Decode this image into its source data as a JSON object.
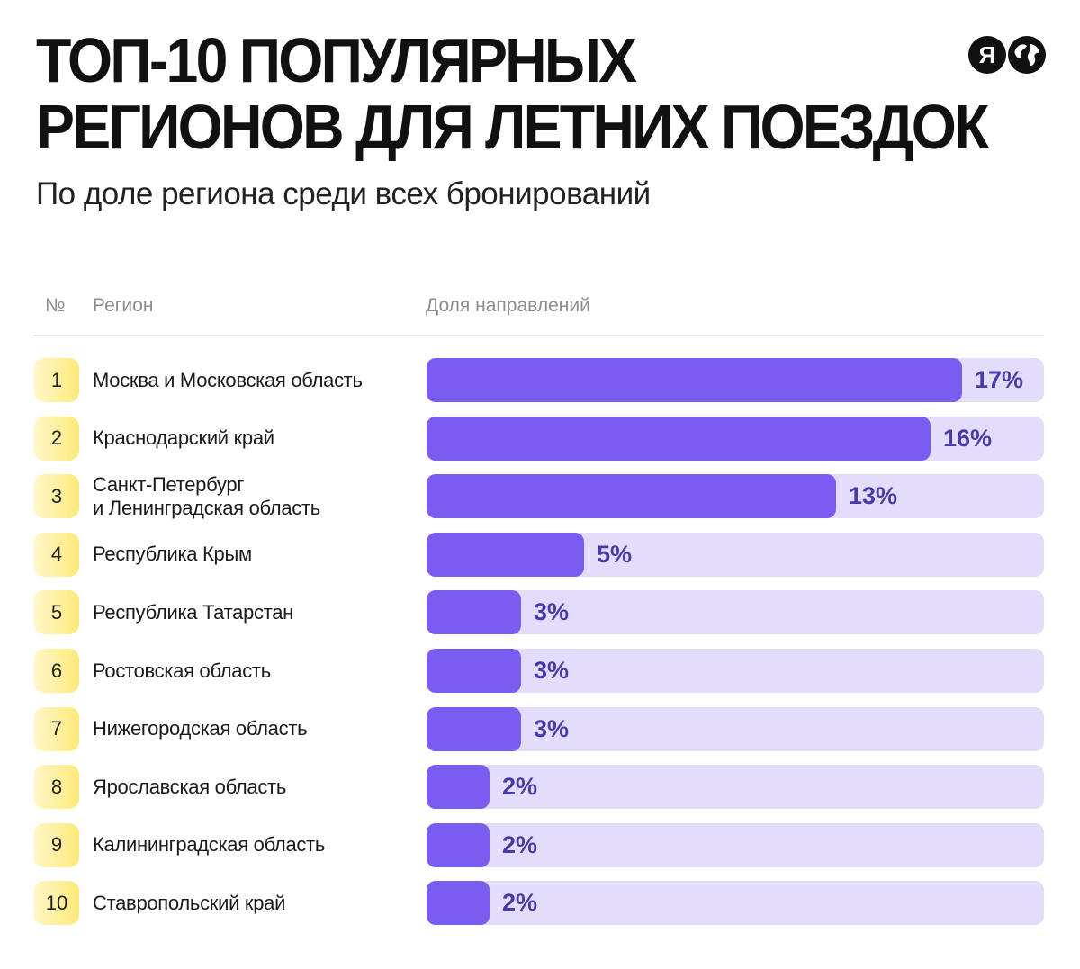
{
  "header": {
    "title_line1": "ТОП-10 ПОПУЛЯРНЫХ",
    "title_line2": "РЕГИОНОВ ДЛЯ ЛЕТНИХ ПОЕЗДОК",
    "subtitle": "По доле региона среди всех бронирований",
    "logo_letter": "Я"
  },
  "table_header": {
    "no": "№",
    "region": "Регион",
    "share": "Доля направлений"
  },
  "colors": {
    "bar_fill": "#7a5cf0",
    "bar_track": "#e4dcfb",
    "badge": "#fde97a",
    "value_text": "#4a3aa8"
  },
  "chart_data": {
    "type": "bar",
    "orientation": "horizontal",
    "title": "ТОП-10 ПОПУЛЯРНЫХ РЕГИОНОВ ДЛЯ ЛЕТНИХ ПОЕЗДОК",
    "subtitle": "По доле региона среди всех бронирований",
    "xlabel": "Доля направлений",
    "ylabel": "Регион",
    "xlim": [
      0,
      19.6
    ],
    "unit": "%",
    "rows": [
      {
        "rank": "1",
        "region_lines": [
          "Москва и Московская область"
        ],
        "value": 17,
        "label": "17%"
      },
      {
        "rank": "2",
        "region_lines": [
          "Краснодарский край"
        ],
        "value": 16,
        "label": "16%"
      },
      {
        "rank": "3",
        "region_lines": [
          "Санкт-Петербург",
          "и Ленинградская область"
        ],
        "value": 13,
        "label": "13%"
      },
      {
        "rank": "4",
        "region_lines": [
          "Республика Крым"
        ],
        "value": 5,
        "label": "5%"
      },
      {
        "rank": "5",
        "region_lines": [
          "Республика Татарстан"
        ],
        "value": 3,
        "label": "3%"
      },
      {
        "rank": "6",
        "region_lines": [
          "Ростовская область"
        ],
        "value": 3,
        "label": "3%"
      },
      {
        "rank": "7",
        "region_lines": [
          "Нижегородская область"
        ],
        "value": 3,
        "label": "3%"
      },
      {
        "rank": "8",
        "region_lines": [
          "Ярославская область"
        ],
        "value": 2,
        "label": "2%"
      },
      {
        "rank": "9",
        "region_lines": [
          "Калининградская область"
        ],
        "value": 2,
        "label": "2%"
      },
      {
        "rank": "10",
        "region_lines": [
          "Ставропольский край"
        ],
        "value": 2,
        "label": "2%"
      }
    ]
  }
}
